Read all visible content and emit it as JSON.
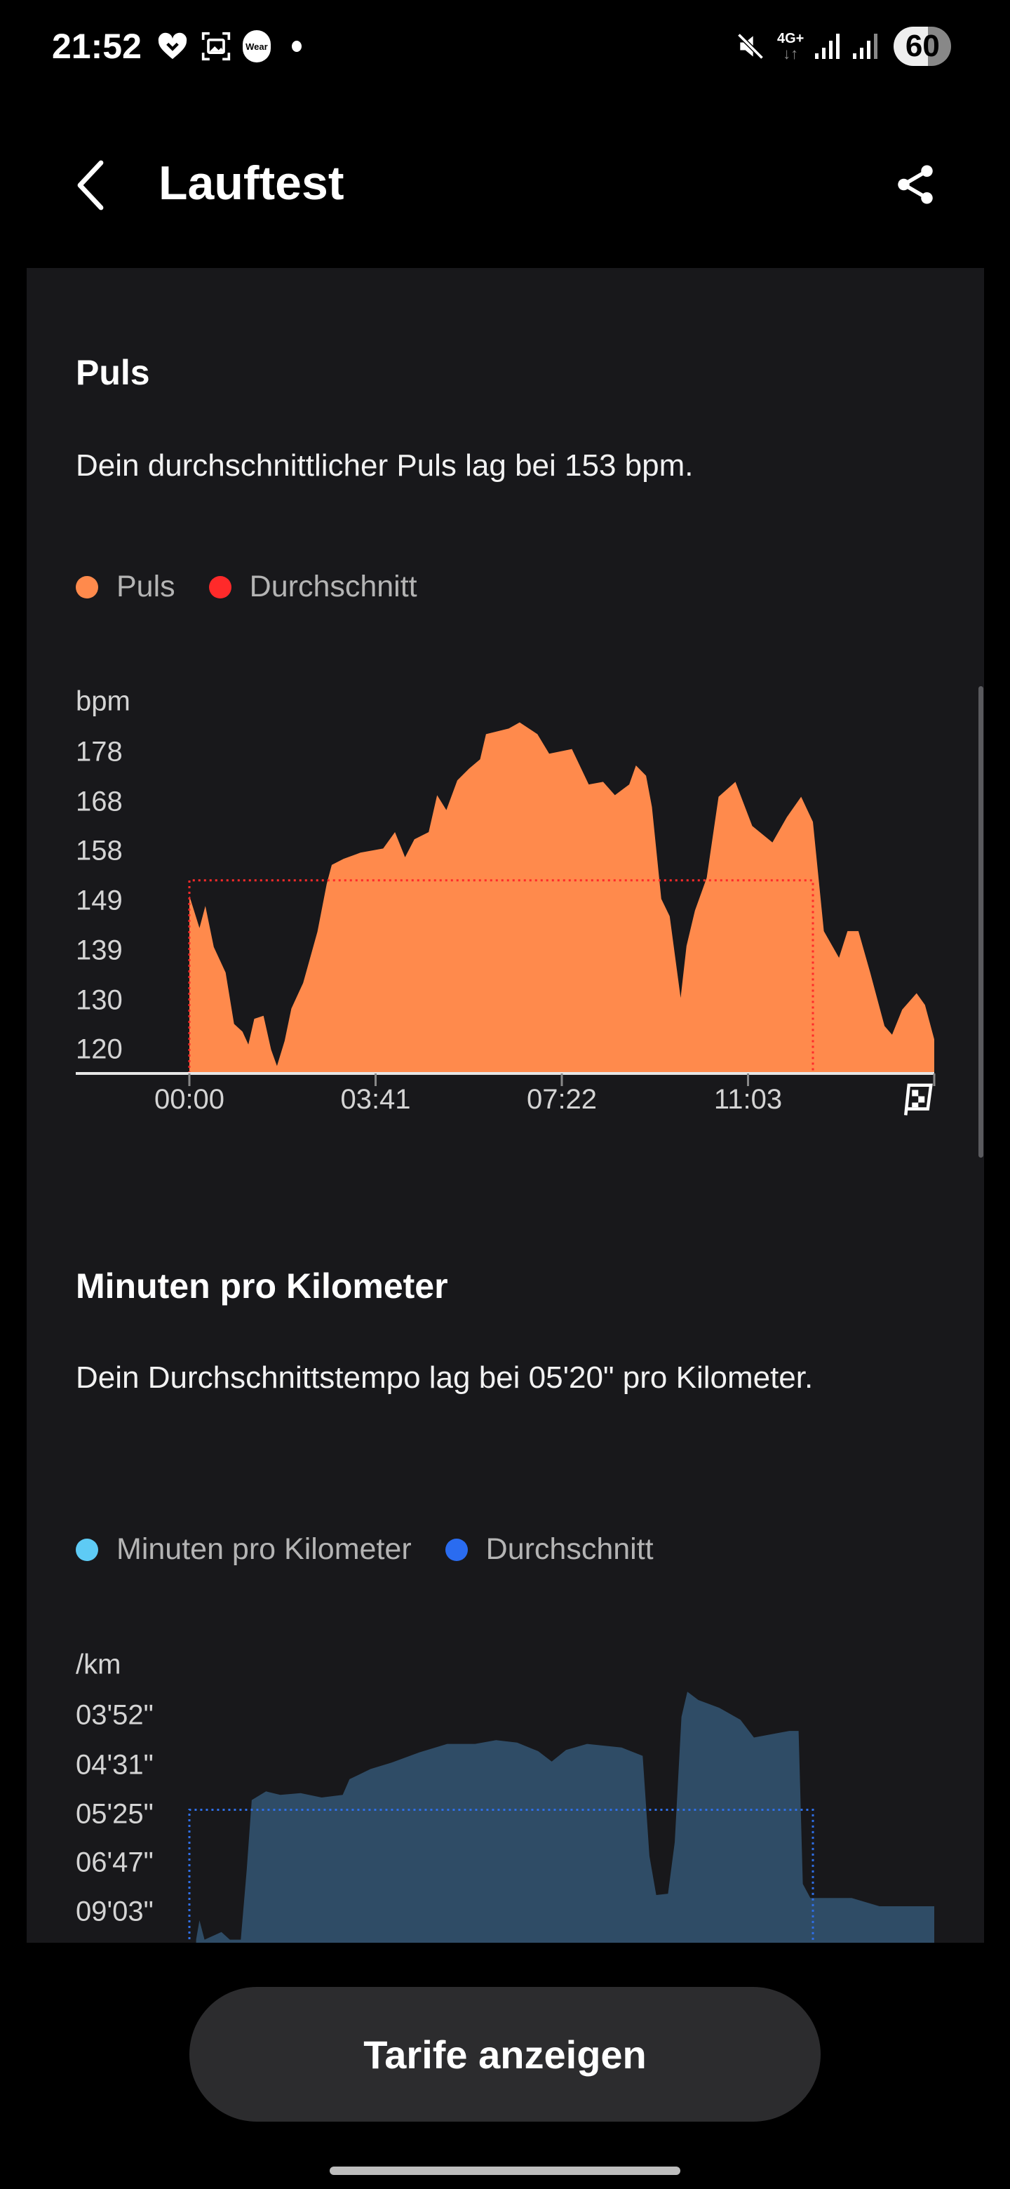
{
  "status_bar": {
    "time": "21:52",
    "wear_badge": "Wear",
    "network": "4G+",
    "battery": "60",
    "icons": [
      "heart-icon",
      "screenshot-icon",
      "wear-icon",
      "notification-dot-icon",
      "mute-icon",
      "signal-icon",
      "signal-icon",
      "battery-icon"
    ]
  },
  "header": {
    "title": "Lauftest",
    "back_icon": "chevron-left-icon",
    "share_icon": "share-icon"
  },
  "pulse": {
    "title": "Puls",
    "description": "Dein durchschnittlicher Puls lag bei 153 bpm.",
    "legend": [
      {
        "label": "Puls",
        "color": "#ff8a4c"
      },
      {
        "label": "Durchschnitt",
        "color": "#ff2a2a"
      }
    ]
  },
  "pace": {
    "title": "Minuten pro Kilometer",
    "description": "Dein Durchschnittstempo lag bei 05'20\" pro Kilometer.",
    "legend": [
      {
        "label": "Minuten pro Kilometer",
        "color": "#5ecbf5"
      },
      {
        "label": "Durchschnitt",
        "color": "#2a6cf0"
      }
    ]
  },
  "chart_data": [
    {
      "type": "area",
      "ylabel": "bpm",
      "yticks": [
        "178",
        "168",
        "158",
        "149",
        "139",
        "130",
        "120"
      ],
      "xticks": [
        "00:00",
        "03:41",
        "07:22",
        "11:03"
      ],
      "end_marker": "finish-flag-icon",
      "ylim": [
        115,
        185
      ],
      "average": 153,
      "average_end": "12:20",
      "fill_color": "#ff8a4c",
      "average_color": "#ff2a2a",
      "x": [
        "00:00",
        "00:12",
        "00:19",
        "00:29",
        "00:43",
        "00:53",
        "01:03",
        "01:10",
        "01:17",
        "01:28",
        "01:37",
        "01:44",
        "01:53",
        "02:01",
        "02:15",
        "02:32",
        "02:43",
        "02:49",
        "03:03",
        "03:23",
        "03:50",
        "04:04",
        "04:16",
        "04:27",
        "04:44",
        "04:54",
        "05:05",
        "05:18",
        "05:32",
        "05:45",
        "05:52",
        "06:19",
        "06:32",
        "06:53",
        "07:07",
        "07:34",
        "07:54",
        "08:11",
        "08:25",
        "08:42",
        "08:50",
        "09:02",
        "09:09",
        "09:20",
        "09:30",
        "09:43",
        "09:50",
        "10:00",
        "10:14",
        "10:28",
        "10:48",
        "11:08",
        "11:32",
        "11:49",
        "12:06",
        "12:20",
        "12:33",
        "12:51",
        "13:01",
        "13:14",
        "13:28",
        "13:45",
        "13:54",
        "14:06",
        "14:23",
        "14:33",
        "14:44"
      ],
      "y": [
        150,
        143.7,
        148,
        140,
        135,
        125,
        123.5,
        121,
        126,
        126.6,
        120,
        116.8,
        121.7,
        128,
        133,
        143,
        152.3,
        156,
        157.2,
        158.4,
        159.2,
        162.4,
        157.5,
        161,
        162.4,
        169.6,
        166.7,
        172.5,
        174.8,
        176.6,
        181.5,
        182.6,
        183.8,
        181.5,
        177.7,
        178.6,
        171.7,
        172.2,
        169.6,
        171.7,
        175.4,
        173.4,
        167.3,
        149.4,
        146,
        130.1,
        140.2,
        147.1,
        153.5,
        169.3,
        172.2,
        163.6,
        160.4,
        165.3,
        169.3,
        164.4,
        143.1,
        137.9,
        143.1,
        143.1,
        135,
        124.6,
        122.9,
        127.8,
        131,
        128.7,
        122
      ]
    },
    {
      "type": "area",
      "ylabel": "/km",
      "yticks": [
        "03'52\"",
        "04'31\"",
        "05'25\"",
        "06'47\"",
        "09'03\""
      ],
      "average": "05'20\"",
      "average_end": "12:20",
      "fill_color": "#2f4c66",
      "average_color": "#2f6fe8",
      "x": [
        "00:08",
        "00:12",
        "00:18",
        "00:38",
        "00:48",
        "01:01",
        "01:08",
        "01:14",
        "01:31",
        "01:48",
        "02:12",
        "02:37",
        "03:02",
        "03:10",
        "03:35",
        "04:00",
        "04:33",
        "05:06",
        "05:39",
        "06:04",
        "06:29",
        "06:54",
        "07:10",
        "07:27",
        "07:52",
        "08:33",
        "08:58",
        "09:06",
        "09:14",
        "09:28",
        "09:36",
        "09:44",
        "09:51",
        "10:04",
        "10:29",
        "10:54",
        "11:10",
        "11:35",
        "11:52",
        "12:03",
        "12:08",
        "12:17",
        "12:33",
        "13:06",
        "13:39",
        "14:12",
        "14:44"
      ],
      "y": [
        "11'10\"",
        "09'36\"",
        "11'10\"",
        "10'30\"",
        "11'10\"",
        "11'10\"",
        "07'03\"",
        "05'08\"",
        "04'58\"",
        "05'02\"",
        "05'00\"",
        "05'05\"",
        "05'02\"",
        "04'45\"",
        "04'35\"",
        "04'29\"",
        "04'20\"",
        "04'13\"",
        "04'13\"",
        "04'10\"",
        "04'12\"",
        "04'19\"",
        "04'28\"",
        "04'18\"",
        "04'13\"",
        "04'16\"",
        "04'23\"",
        "06'33\"",
        "08'07\"",
        "08'03\"",
        "06'08\"",
        "03'53\"",
        "03'37\"",
        "03'42\"",
        "03'47\"",
        "03'55\"",
        "04'08\"",
        "04'05\"",
        "04'03\"",
        "04'03\"",
        "07'36\"",
        "08'16\"",
        "08'16\"",
        "08'16\"",
        "08'43\"",
        "08'43\"",
        "08'43\""
      ]
    }
  ],
  "cta": {
    "label": "Tarife anzeigen"
  }
}
